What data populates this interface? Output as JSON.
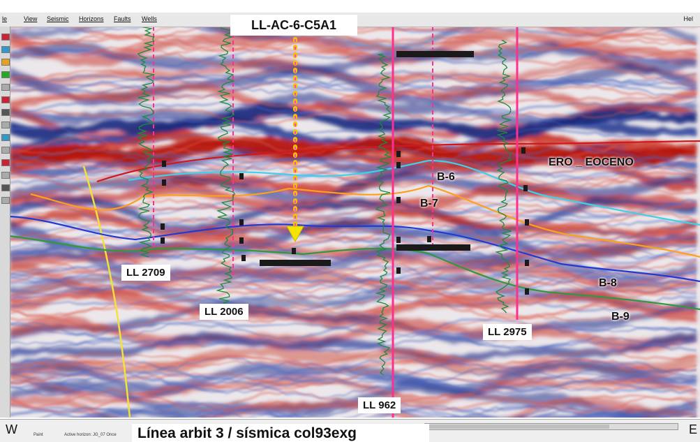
{
  "app": {
    "menu": [
      "le",
      "View",
      "Seismic",
      "Horizons",
      "Faults",
      "Wells"
    ],
    "menu_right": "Hel"
  },
  "header": {
    "well_title": "LL-AC-6-C5A1"
  },
  "wells": [
    {
      "name": "LL 2709"
    },
    {
      "name": "LL 2006"
    },
    {
      "name": "LL 962"
    },
    {
      "name": "LL 2975"
    }
  ],
  "horizons": [
    {
      "name": "ERO _ EOCENO",
      "color": "#cc1a1a"
    },
    {
      "name": "B-6",
      "color": "#33c9e6"
    },
    {
      "name": "B-7",
      "color": "#ff9f1a"
    },
    {
      "name": "B-8",
      "color": "#1f3bd6"
    },
    {
      "name": "B-9",
      "color": "#2f9a3a"
    }
  ],
  "status": {
    "left_dir": "W",
    "right_dir": "E",
    "caption": "Línea arbit 3 / sísmica col93exg",
    "mode": "Paint",
    "active_horizon": "Active horizon: JG_07 Once"
  },
  "colors": {
    "seismic_red": "#c4291f",
    "seismic_blue": "#1c2e8a",
    "well_pick": "#ff2f8f",
    "well_log": "#1d8a3a",
    "trajectory": "#f0c400"
  }
}
